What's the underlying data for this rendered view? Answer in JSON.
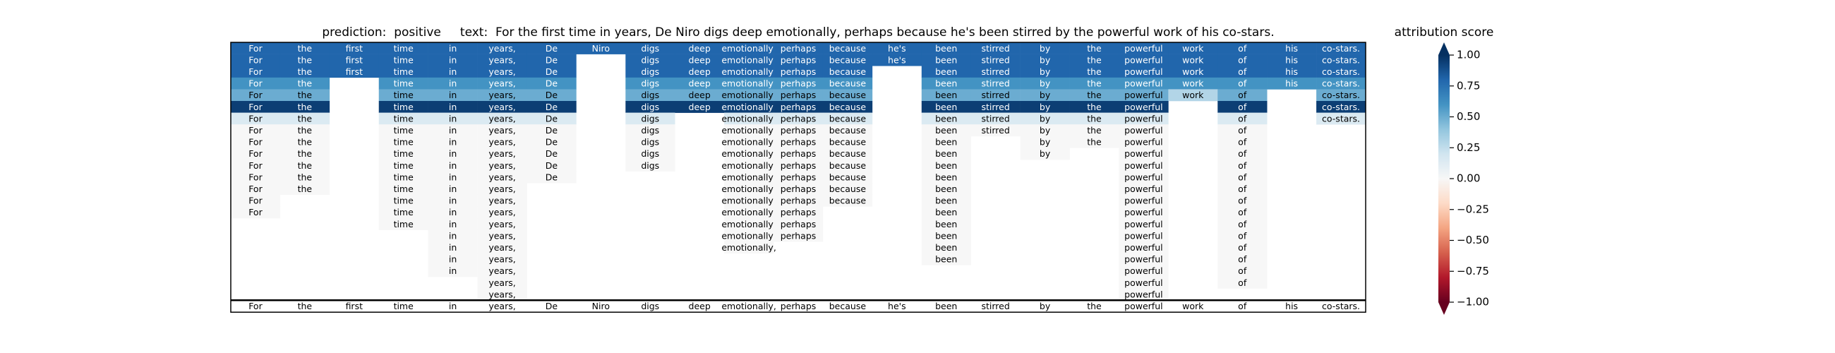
{
  "chart_data": {
    "type": "heatmap",
    "title": "prediction:  positive     text:  For the first time in years, De Niro digs deep emotionally, perhaps because he's been stirred by the powerful work of his co-stars.",
    "tokens": [
      "For",
      "the",
      "first",
      "time",
      "in",
      "years,",
      "De",
      "Niro",
      "digs",
      "deep",
      "emotionally,",
      "perhaps",
      "because",
      "he's",
      "been",
      "stirred",
      "by",
      "the",
      "powerful",
      "work",
      "of",
      "his",
      "co-stars."
    ],
    "values": [
      [
        0.8,
        0.8,
        0.8,
        0.8,
        0.8,
        0.8,
        0.8,
        0.8,
        0.8,
        0.8,
        0.8,
        0.8,
        0.8,
        0.8,
        0.8,
        0.8,
        0.8,
        0.8,
        0.8,
        0.8,
        0.8,
        0.8,
        0.8
      ],
      [
        0.8,
        0.8,
        0.8,
        0.8,
        0.8,
        0.8,
        0.8,
        null,
        0.8,
        0.8,
        0.8,
        0.8,
        0.8,
        0.8,
        0.8,
        0.8,
        0.8,
        0.8,
        0.8,
        0.8,
        0.8,
        0.8,
        0.8
      ],
      [
        0.8,
        0.8,
        0.8,
        0.8,
        0.8,
        0.8,
        0.8,
        null,
        0.8,
        0.8,
        0.8,
        0.8,
        0.8,
        null,
        0.8,
        0.8,
        0.8,
        0.8,
        0.8,
        0.8,
        0.8,
        0.8,
        0.8
      ],
      [
        0.6,
        0.6,
        null,
        0.6,
        0.6,
        0.6,
        0.6,
        null,
        0.6,
        0.6,
        0.6,
        0.6,
        0.6,
        null,
        0.6,
        0.6,
        0.6,
        0.6,
        0.6,
        0.6,
        0.6,
        0.6,
        0.6
      ],
      [
        0.5,
        0.5,
        null,
        0.5,
        0.5,
        0.5,
        0.5,
        null,
        0.5,
        0.5,
        0.5,
        0.5,
        0.5,
        null,
        0.5,
        0.5,
        0.5,
        0.5,
        0.5,
        0.3,
        0.5,
        null,
        0.5
      ],
      [
        0.95,
        0.95,
        null,
        0.95,
        0.95,
        0.95,
        0.95,
        null,
        0.95,
        0.95,
        0.95,
        0.95,
        0.95,
        null,
        0.95,
        0.95,
        0.95,
        0.95,
        0.95,
        null,
        0.95,
        null,
        0.95
      ],
      [
        0.15,
        0.15,
        null,
        0.15,
        0.15,
        0.15,
        0.15,
        null,
        0.15,
        null,
        0.15,
        0.15,
        0.15,
        null,
        0.15,
        0.15,
        0.15,
        0.15,
        0.15,
        null,
        0.15,
        null,
        0.15
      ],
      [
        0,
        0,
        null,
        0,
        0,
        0,
        0,
        null,
        0,
        null,
        0,
        0,
        0,
        null,
        0,
        0,
        0,
        0,
        0,
        null,
        0,
        null,
        null
      ],
      [
        0,
        0,
        null,
        0,
        0,
        0,
        0,
        null,
        0,
        null,
        0,
        0,
        0,
        null,
        0,
        null,
        0,
        0,
        0,
        null,
        0,
        null,
        null
      ],
      [
        0,
        0,
        null,
        0,
        0,
        0,
        0,
        null,
        0,
        null,
        0,
        0,
        0,
        null,
        0,
        null,
        0,
        null,
        0,
        null,
        0,
        null,
        null
      ],
      [
        0,
        0,
        null,
        0,
        0,
        0,
        0,
        null,
        0,
        null,
        0,
        0,
        0,
        null,
        0,
        null,
        null,
        null,
        0,
        null,
        0,
        null,
        null
      ],
      [
        0,
        0,
        null,
        0,
        0,
        0,
        0,
        null,
        null,
        null,
        0,
        0,
        0,
        null,
        0,
        null,
        null,
        null,
        0,
        null,
        0,
        null,
        null
      ],
      [
        0,
        0,
        null,
        0,
        0,
        0,
        null,
        null,
        null,
        null,
        0,
        0,
        0,
        null,
        0,
        null,
        null,
        null,
        0,
        null,
        0,
        null,
        null
      ],
      [
        0,
        null,
        null,
        0,
        0,
        0,
        null,
        null,
        null,
        null,
        0,
        0,
        0,
        null,
        0,
        null,
        null,
        null,
        0,
        null,
        0,
        null,
        null
      ],
      [
        0,
        null,
        null,
        0,
        0,
        0,
        null,
        null,
        null,
        null,
        0,
        0,
        null,
        null,
        0,
        null,
        null,
        null,
        0,
        null,
        0,
        null,
        null
      ],
      [
        null,
        null,
        null,
        0,
        0,
        0,
        null,
        null,
        null,
        null,
        0,
        0,
        null,
        null,
        0,
        null,
        null,
        null,
        0,
        null,
        0,
        null,
        null
      ],
      [
        null,
        null,
        null,
        null,
        0,
        0,
        null,
        null,
        null,
        null,
        0,
        0,
        null,
        null,
        0,
        null,
        null,
        null,
        0,
        null,
        0,
        null,
        null
      ],
      [
        null,
        null,
        null,
        null,
        0,
        0,
        null,
        null,
        null,
        null,
        0,
        null,
        null,
        null,
        0,
        null,
        null,
        null,
        0,
        null,
        0,
        null,
        null
      ],
      [
        null,
        null,
        null,
        null,
        0,
        0,
        null,
        null,
        null,
        null,
        null,
        null,
        null,
        null,
        0,
        null,
        null,
        null,
        0,
        null,
        0,
        null,
        null
      ],
      [
        null,
        null,
        null,
        null,
        0,
        0,
        null,
        null,
        null,
        null,
        null,
        null,
        null,
        null,
        null,
        null,
        null,
        null,
        0,
        null,
        0,
        null,
        null
      ],
      [
        null,
        null,
        null,
        null,
        null,
        0,
        null,
        null,
        null,
        null,
        null,
        null,
        null,
        null,
        null,
        null,
        null,
        null,
        0,
        null,
        0,
        null,
        null
      ],
      [
        null,
        null,
        null,
        null,
        null,
        0,
        null,
        null,
        null,
        null,
        null,
        null,
        null,
        null,
        null,
        null,
        null,
        null,
        0,
        null,
        null,
        null,
        null
      ]
    ],
    "colorbar_label": "attribution score",
    "clim": [
      -1,
      1
    ],
    "cticks": [
      {
        "value": 1,
        "label": "1.00"
      },
      {
        "value": 0.75,
        "label": "0.75"
      },
      {
        "value": 0.5,
        "label": "0.50"
      },
      {
        "value": 0.25,
        "label": "0.25"
      },
      {
        "value": 0,
        "label": "0.00"
      },
      {
        "value": -0.25,
        "label": "−0.25"
      },
      {
        "value": -0.5,
        "label": "−0.50"
      },
      {
        "value": -0.75,
        "label": "−0.75"
      },
      {
        "value": -1,
        "label": "−1.00"
      }
    ]
  }
}
